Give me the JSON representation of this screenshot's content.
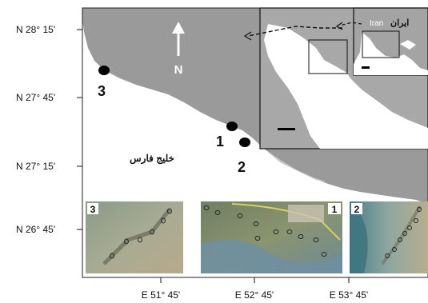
{
  "map": {
    "north_label": "N",
    "gulf_label": "خليج فارس",
    "lat_ticks": [
      "N 28° 15'",
      "N 27° 45'",
      "N 27° 15'",
      "N 26° 45'"
    ],
    "lon_ticks": [
      "E 51° 45'",
      "E 52° 45'",
      "E 53° 45'"
    ],
    "sites": [
      {
        "id": "1",
        "label": "1"
      },
      {
        "id": "2",
        "label": "2"
      },
      {
        "id": "3",
        "label": "3"
      }
    ]
  },
  "inset_region": {
    "iran_en": "Iran",
    "iran_fa": "ایران"
  },
  "photos": [
    {
      "label": "3"
    },
    {
      "label": "1"
    },
    {
      "label": "2"
    }
  ],
  "colors": {
    "land": "#9b9b9b",
    "sea": "#ffffff",
    "inset_bg": "#a6a6a6",
    "dot": "#000000"
  }
}
